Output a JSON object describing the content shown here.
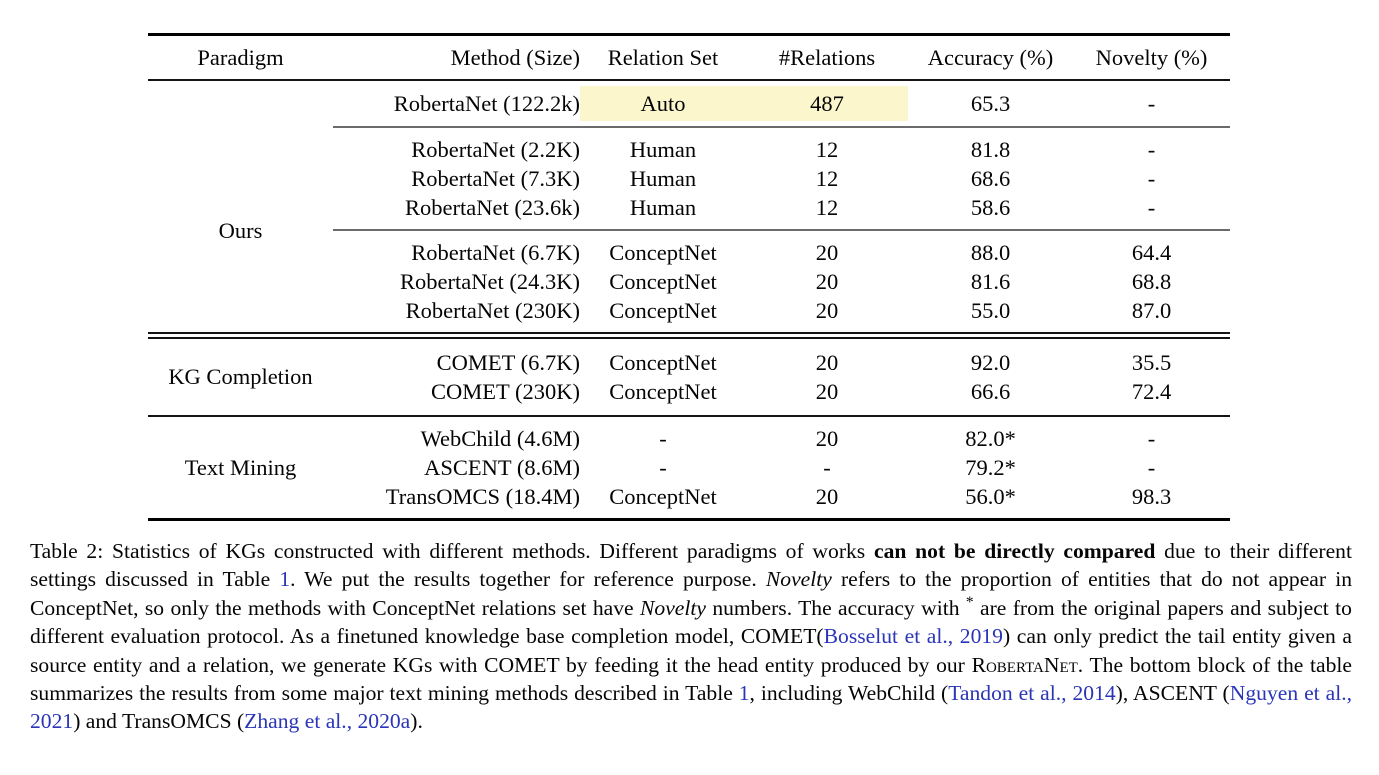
{
  "colors": {
    "link_blue": "#2a35b8",
    "highlight_yellow": "#fcf6cd",
    "rule_black": "#000000",
    "text": "#050505"
  },
  "table": {
    "title_name": "Table 2",
    "columns": [
      "Paradigm",
      "Method (Size)",
      "Relation Set",
      "#Relations",
      "Accuracy (%)",
      "Novelty (%)"
    ],
    "groups": [
      {
        "paradigm": "Ours",
        "subblocks": [
          {
            "rows": [
              {
                "method": "RobertaNet (122.2k)",
                "relation_set": "Auto",
                "n_relations": "487",
                "accuracy": "65.3",
                "novelty": "-",
                "highlight": true
              }
            ]
          },
          {
            "rows": [
              {
                "method": "RobertaNet (2.2K)",
                "relation_set": "Human",
                "n_relations": "12",
                "accuracy": "81.8",
                "novelty": "-"
              },
              {
                "method": "RobertaNet (7.3K)",
                "relation_set": "Human",
                "n_relations": "12",
                "accuracy": "68.6",
                "novelty": "-"
              },
              {
                "method": "RobertaNet (23.6k)",
                "relation_set": "Human",
                "n_relations": "12",
                "accuracy": "58.6",
                "novelty": "-"
              }
            ]
          },
          {
            "rows": [
              {
                "method": "RobertaNet (6.7K)",
                "relation_set": "ConceptNet",
                "n_relations": "20",
                "accuracy": "88.0",
                "novelty": "64.4"
              },
              {
                "method": "RobertaNet (24.3K)",
                "relation_set": "ConceptNet",
                "n_relations": "20",
                "accuracy": "81.6",
                "novelty": "68.8"
              },
              {
                "method": "RobertaNet (230K)",
                "relation_set": "ConceptNet",
                "n_relations": "20",
                "accuracy": "55.0",
                "novelty": "87.0"
              }
            ]
          }
        ]
      },
      {
        "paradigm": "KG Completion",
        "subblocks": [
          {
            "rows": [
              {
                "method": "COMET (6.7K)",
                "relation_set": "ConceptNet",
                "n_relations": "20",
                "accuracy": "92.0",
                "novelty": "35.5"
              },
              {
                "method": "COMET (230K)",
                "relation_set": "ConceptNet",
                "n_relations": "20",
                "accuracy": "66.6",
                "novelty": "72.4"
              }
            ]
          }
        ]
      },
      {
        "paradigm": "Text Mining",
        "subblocks": [
          {
            "rows": [
              {
                "method": "WebChild (4.6M)",
                "relation_set": "-",
                "n_relations": "20",
                "accuracy": "82.0*",
                "novelty": "-"
              },
              {
                "method": "ASCENT (8.6M)",
                "relation_set": "-",
                "n_relations": "-",
                "accuracy": "79.2*",
                "novelty": "-"
              },
              {
                "method": "TransOMCS (18.4M)",
                "relation_set": "ConceptNet",
                "n_relations": "20",
                "accuracy": "56.0*",
                "novelty": "98.3"
              }
            ]
          }
        ]
      }
    ]
  },
  "caption": {
    "segments": [
      {
        "t": "Table 2: Statistics of KGs constructed with different methods. Different paradigms of works ",
        "s": "n"
      },
      {
        "t": "can not be directly compared",
        "s": "b"
      },
      {
        "t": " due to their different settings discussed in Table ",
        "s": "n"
      },
      {
        "t": "1",
        "s": "l"
      },
      {
        "t": ". We put the results together for reference purpose. ",
        "s": "n"
      },
      {
        "t": "Novelty",
        "s": "i"
      },
      {
        "t": " refers to the proportion of entities that do not appear in ConceptNet, so only the methods with ConceptNet relations set have ",
        "s": "n"
      },
      {
        "t": "Novelty",
        "s": "i"
      },
      {
        "t": " numbers. The accuracy with ",
        "s": "n"
      },
      {
        "t": "*",
        "s": "sup"
      },
      {
        "t": " are from the original papers and subject to different evaluation protocol. As a finetuned knowledge base completion model, COMET(",
        "s": "n"
      },
      {
        "t": "Bosselut et al., 2019",
        "s": "l"
      },
      {
        "t": ") can only predict the tail entity given a source entity and a relation, we generate KGs with COMET by feeding it the head entity produced by our ",
        "s": "n"
      },
      {
        "t": "RobertaNet",
        "s": "sc"
      },
      {
        "t": ". The bottom block of the table summarizes the results from some major text mining methods described in Table ",
        "s": "n"
      },
      {
        "t": "1",
        "s": "l"
      },
      {
        "t": ", including WebChild (",
        "s": "n"
      },
      {
        "t": "Tandon et al., 2014",
        "s": "l"
      },
      {
        "t": "), ASCENT (",
        "s": "n"
      },
      {
        "t": "Nguyen et al., 2021",
        "s": "l"
      },
      {
        "t": ") and TransOMCS (",
        "s": "n"
      },
      {
        "t": "Zhang et al., 2020a",
        "s": "l"
      },
      {
        "t": ").",
        "s": "n"
      }
    ]
  }
}
